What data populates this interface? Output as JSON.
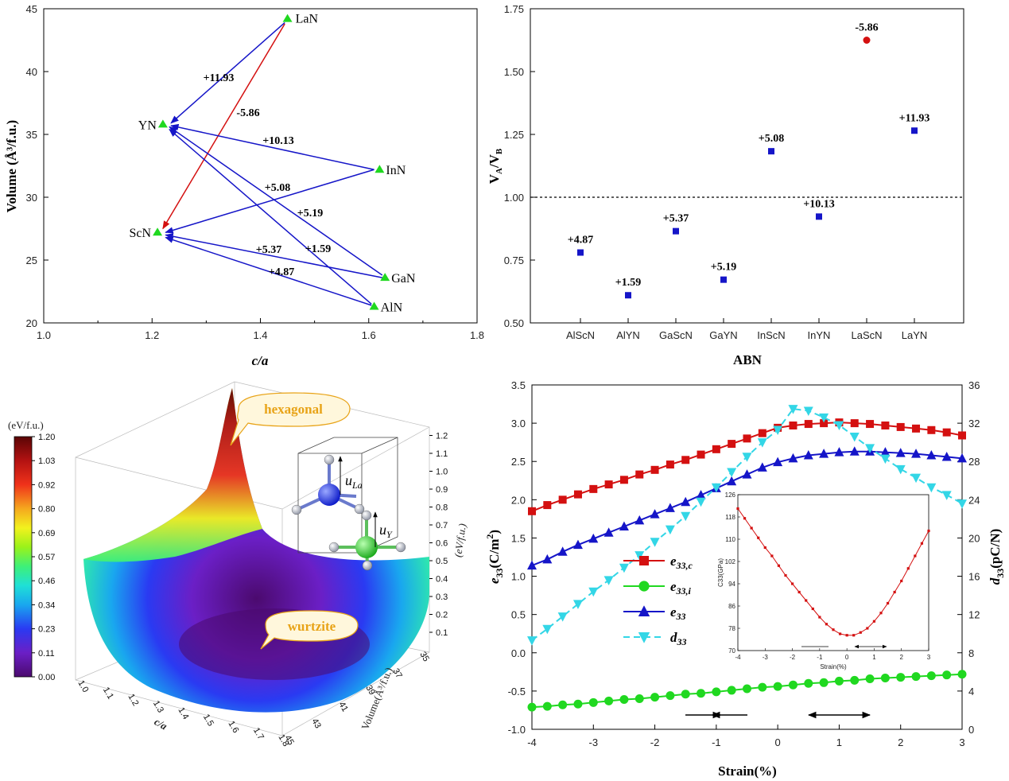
{
  "colors": {
    "blue": "#1515c8",
    "red": "#d41010",
    "green": "#20d820",
    "cyan": "#33d6e6",
    "black": "#000000"
  },
  "panelA": {
    "xlabel": "c/a",
    "ylabel": "Volume (Å³/f.u.)",
    "xticks": [
      "1.0",
      "1.2",
      "1.4",
      "1.6",
      "1.8"
    ],
    "yticks": [
      "20",
      "25",
      "30",
      "35",
      "40",
      "45"
    ]
  },
  "panelB": {
    "xlabel": "ABN",
    "ylabel_main": "V",
    "ylabel_a": "A",
    "ylabel_sep": "/V",
    "ylabel_b": "B",
    "yticks": [
      "0.50",
      "0.75",
      "1.00",
      "1.25",
      "1.50",
      "1.75"
    ]
  },
  "panelC": {
    "colorbar_title": "(eV/f.u.)",
    "colorbar_ticks": [
      "0.00",
      "0.11",
      "0.23",
      "0.34",
      "0.46",
      "0.57",
      "0.69",
      "0.80",
      "0.92",
      "1.03",
      "1.20"
    ],
    "zticks": [
      "0.1",
      "0.2",
      "0.3",
      "0.4",
      "0.5",
      "0.6",
      "0.7",
      "0.8",
      "0.9",
      "1.0",
      "1.1",
      "1.2"
    ],
    "zlabel": "(eV/f.u.)",
    "xticks": [
      "1.0",
      "1.1",
      "1.2",
      "1.3",
      "1.4",
      "1.5",
      "1.6",
      "1.7",
      "1.8"
    ],
    "xlabel": "c/a",
    "yticks": [
      "35",
      "37",
      "39",
      "41",
      "43",
      "45"
    ],
    "ylabel": "Volume(Å³/f.u.)",
    "bubble_top": "hexagonal",
    "bubble_bottom": "wurtzite",
    "u_la_main": "u",
    "u_la_sub": "La",
    "u_y_main": "u",
    "u_y_sub": "Y"
  },
  "panelD": {
    "xlabel": "Strain(%)",
    "ylabel_left_main": "e",
    "ylabel_left_sub": "33",
    "ylabel_left_unit": "(C/m",
    "ylabel_left_sup": "2",
    "ylabel_left_end": ")",
    "ylabel_right_main": "d",
    "ylabel_right_sub": "33",
    "ylabel_right_unit": "(pC/N)",
    "xticks": [
      "-4",
      "-3",
      "-2",
      "-1",
      "0",
      "1",
      "2",
      "3"
    ],
    "yticks_left": [
      "-1.0",
      "-0.5",
      "0.0",
      "0.5",
      "1.0",
      "1.5",
      "2.0",
      "2.5",
      "3.0",
      "3.5"
    ],
    "yticks_right": [
      "0",
      "4",
      "8",
      "12",
      "16",
      "20",
      "24",
      "28",
      "32",
      "36"
    ],
    "legend": [
      {
        "main": "e",
        "sub": "33,c",
        "color": "#d41010",
        "marker": "square"
      },
      {
        "main": "e",
        "sub": "33,i",
        "color": "#20d820",
        "marker": "circle"
      },
      {
        "main": "e",
        "sub": "33",
        "color": "#1515c8",
        "marker": "triangle-up"
      },
      {
        "main": "d",
        "sub": "33",
        "color": "#33d6e6",
        "marker": "triangle-down"
      }
    ],
    "inset": {
      "ylabel": "C33(GPa)",
      "xlabel": "Strain(%)",
      "xticks": [
        "-4",
        "-3",
        "-2",
        "-1",
        "0",
        "1",
        "2",
        "3"
      ],
      "yticks": [
        "70",
        "78",
        "86",
        "94",
        "102",
        "110",
        "118",
        "126"
      ]
    }
  },
  "chart_data": [
    {
      "type": "scatter",
      "xlabel": "c/a",
      "ylabel": "Volume (Å³/f.u.)",
      "xlim": [
        1.0,
        1.8
      ],
      "ylim": [
        20,
        45
      ],
      "points": [
        {
          "label": "LaN",
          "x": 1.45,
          "y": 44.2
        },
        {
          "label": "YN",
          "x": 1.22,
          "y": 35.8
        },
        {
          "label": "InN",
          "x": 1.62,
          "y": 32.2
        },
        {
          "label": "ScN",
          "x": 1.21,
          "y": 27.2
        },
        {
          "label": "GaN",
          "x": 1.63,
          "y": 23.6
        },
        {
          "label": "AlN",
          "x": 1.61,
          "y": 21.3
        }
      ],
      "arrows": [
        {
          "from": "LaN",
          "to": "YN",
          "label": "+11.93",
          "color": "blue"
        },
        {
          "from": "LaN",
          "to": "ScN",
          "label": "-5.86",
          "color": "red"
        },
        {
          "from": "InN",
          "to": "YN",
          "label": "+10.13",
          "color": "blue"
        },
        {
          "from": "InN",
          "to": "ScN",
          "label": "+5.08",
          "color": "blue"
        },
        {
          "from": "GaN",
          "to": "YN",
          "label": "+5.19",
          "color": "blue"
        },
        {
          "from": "AlN",
          "to": "YN",
          "label": "+1.59",
          "color": "blue"
        },
        {
          "from": "GaN",
          "to": "ScN",
          "label": "+5.37",
          "color": "blue"
        },
        {
          "from": "AlN",
          "to": "ScN",
          "label": "+4.87",
          "color": "blue"
        }
      ]
    },
    {
      "type": "scatter",
      "xlabel": "ABN",
      "ylabel": "VA/VB",
      "ylim": [
        0.5,
        1.75
      ],
      "reference_line": 1.0,
      "categories": [
        "AlScN",
        "AlYN",
        "GaScN",
        "GaYN",
        "InScN",
        "InYN",
        "LaScN",
        "LaYN"
      ],
      "values": [
        0.78,
        0.61,
        0.865,
        0.672,
        1.183,
        0.923,
        1.625,
        1.265
      ],
      "labels": [
        "+4.87",
        "+1.59",
        "+5.37",
        "+5.19",
        "+5.08",
        "+10.13",
        "-5.86",
        "+11.93"
      ]
    },
    {
      "type": "surface",
      "xlabel": "c/a",
      "ylabel": "Volume(Å³/f.u.)",
      "zlabel": "(eV/f.u.)",
      "xlim": [
        1.0,
        1.8
      ],
      "ylim": [
        35,
        45
      ],
      "zlim": [
        0.0,
        1.2
      ],
      "annotations": [
        "hexagonal",
        "wurtzite"
      ]
    },
    {
      "type": "line",
      "xlabel": "Strain(%)",
      "xlim": [
        -4,
        3
      ],
      "ylim_left": [
        -1.0,
        3.5
      ],
      "ylim_right": [
        0,
        36
      ],
      "x": [
        -4.0,
        -3.75,
        -3.5,
        -3.25,
        -3.0,
        -2.75,
        -2.5,
        -2.25,
        -2.0,
        -1.75,
        -1.5,
        -1.25,
        -1.0,
        -0.75,
        -0.5,
        -0.25,
        0.0,
        0.25,
        0.5,
        0.75,
        1.0,
        1.25,
        1.5,
        1.75,
        2.0,
        2.25,
        2.5,
        2.75,
        3.0
      ],
      "series": [
        {
          "name": "e33,c",
          "axis": "left",
          "values": [
            1.85,
            1.93,
            2.0,
            2.07,
            2.14,
            2.2,
            2.26,
            2.33,
            2.39,
            2.46,
            2.52,
            2.59,
            2.66,
            2.73,
            2.8,
            2.87,
            2.94,
            2.97,
            2.99,
            3.0,
            3.01,
            3.0,
            2.99,
            2.97,
            2.95,
            2.93,
            2.91,
            2.88,
            2.84
          ]
        },
        {
          "name": "e33,i",
          "axis": "left",
          "values": [
            -0.71,
            -0.7,
            -0.68,
            -0.67,
            -0.65,
            -0.63,
            -0.61,
            -0.6,
            -0.58,
            -0.56,
            -0.54,
            -0.53,
            -0.51,
            -0.49,
            -0.47,
            -0.45,
            -0.44,
            -0.42,
            -0.4,
            -0.39,
            -0.37,
            -0.36,
            -0.34,
            -0.33,
            -0.32,
            -0.31,
            -0.3,
            -0.29,
            -0.28
          ]
        },
        {
          "name": "e33",
          "axis": "left",
          "values": [
            1.14,
            1.22,
            1.32,
            1.41,
            1.49,
            1.57,
            1.65,
            1.73,
            1.81,
            1.89,
            1.97,
            2.06,
            2.15,
            2.24,
            2.33,
            2.42,
            2.49,
            2.54,
            2.58,
            2.6,
            2.62,
            2.63,
            2.63,
            2.62,
            2.61,
            2.6,
            2.58,
            2.56,
            2.54
          ]
        },
        {
          "name": "d33",
          "axis": "right",
          "values": [
            9.3,
            10.5,
            11.8,
            13.1,
            14.4,
            15.6,
            16.9,
            18.2,
            19.6,
            20.9,
            22.3,
            23.8,
            25.3,
            26.9,
            28.5,
            30.0,
            31.3,
            33.5,
            33.3,
            32.6,
            31.8,
            30.6,
            29.4,
            28.3,
            27.2,
            26.3,
            25.3,
            24.5,
            23.6
          ]
        }
      ],
      "inset": {
        "type": "line",
        "xlabel": "Strain(%)",
        "ylabel": "C33(GPa)",
        "xlim": [
          -4,
          3
        ],
        "ylim": [
          70,
          126
        ],
        "x": [
          -4.0,
          -3.75,
          -3.5,
          -3.25,
          -3.0,
          -2.75,
          -2.5,
          -2.25,
          -2.0,
          -1.75,
          -1.5,
          -1.25,
          -1.0,
          -0.75,
          -0.5,
          -0.25,
          0.0,
          0.25,
          0.5,
          0.75,
          1.0,
          1.25,
          1.5,
          1.75,
          2.0,
          2.25,
          2.5,
          2.75,
          3.0
        ],
        "values": [
          121,
          117.5,
          114,
          110.5,
          107,
          104,
          100.5,
          97,
          94,
          91,
          88,
          85,
          82,
          79.5,
          77.5,
          76,
          75.5,
          75.5,
          76.5,
          78,
          80.5,
          83.5,
          87,
          91,
          95,
          99.5,
          104,
          108.5,
          113
        ]
      }
    }
  ]
}
